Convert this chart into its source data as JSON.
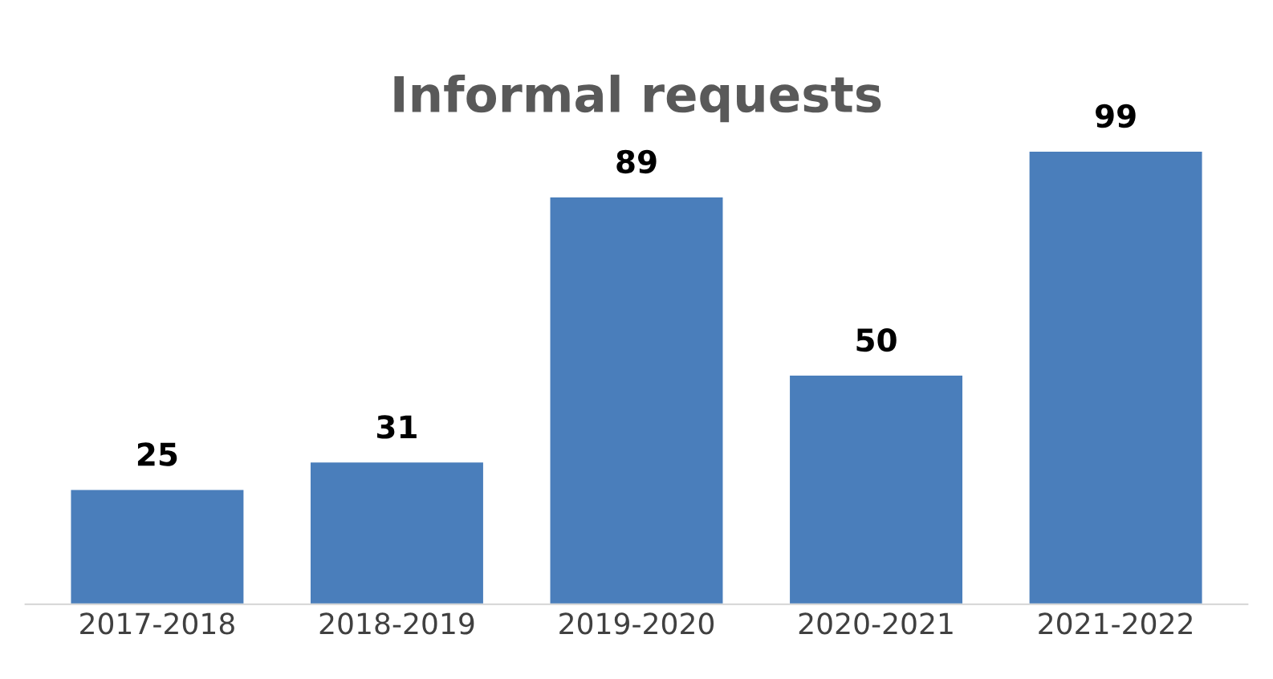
{
  "chart_data": {
    "type": "bar",
    "title": "Informal requests",
    "categories": [
      "2017-2018",
      "2018-2019",
      "2019-2020",
      "2020-2021",
      "2021-2022"
    ],
    "values": [
      25,
      31,
      89,
      50,
      99
    ],
    "color": "#4a7ebb",
    "data_labels": true,
    "tick_labels": "x",
    "grid": false,
    "legend": false
  }
}
